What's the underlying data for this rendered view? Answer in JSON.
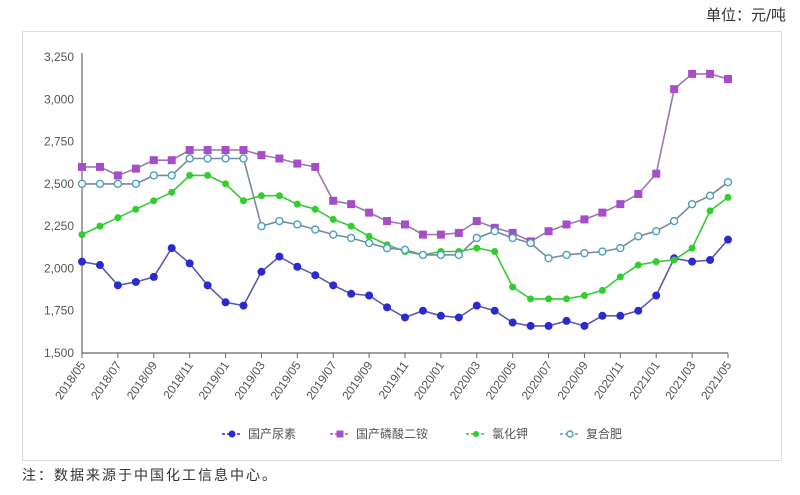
{
  "header": {
    "unit_label": "单位：元/吨"
  },
  "footer": {
    "note": "注：数据来源于中国化工信息中心。"
  },
  "colors": {
    "urea": "#2a2ad0",
    "dap": "#a64dc9",
    "kcl": "#33cc33",
    "compound": "#4a9fbf",
    "axis": "#666666"
  },
  "chart_data": {
    "type": "line",
    "title": "",
    "xlabel": "",
    "ylabel": "元/吨",
    "ylim": [
      1500,
      3250
    ],
    "yticks": [
      1500,
      1750,
      2000,
      2250,
      2500,
      2750,
      3000,
      3250
    ],
    "ytick_labels": [
      "1,500",
      "1,750",
      "2,000",
      "2,250",
      "2,500",
      "2,750",
      "3,000",
      "3,250"
    ],
    "grid": false,
    "legend_position": "bottom",
    "x": [
      "2018/05",
      "2018/06",
      "2018/07",
      "2018/08",
      "2018/09",
      "2018/10",
      "2018/11",
      "2018/12",
      "2019/01",
      "2019/02",
      "2019/03",
      "2019/04",
      "2019/05",
      "2019/06",
      "2019/07",
      "2019/08",
      "2019/09",
      "2019/10",
      "2019/11",
      "2019/12",
      "2020/01",
      "2020/02",
      "2020/03",
      "2020/04",
      "2020/05",
      "2020/06",
      "2020/07",
      "2020/08",
      "2020/09",
      "2020/10",
      "2020/11",
      "2020/12",
      "2021/01",
      "2021/02",
      "2021/03",
      "2021/04",
      "2021/05"
    ],
    "xtick_labels": [
      "2018/05",
      "2018/07",
      "2018/09",
      "2018/11",
      "2019/01",
      "2019/03",
      "2019/05",
      "2019/07",
      "2019/09",
      "2019/11",
      "2020/01",
      "2020/03",
      "2020/05",
      "2020/07",
      "2020/09",
      "2020/11",
      "2021/01",
      "2021/03",
      "2021/05"
    ],
    "series": [
      {
        "name": "国产尿素",
        "marker": "filled-circle",
        "color": "#2a2ad0",
        "values": [
          2040,
          2020,
          1900,
          1920,
          1950,
          2120,
          2030,
          1900,
          1800,
          1780,
          1980,
          2070,
          2010,
          1960,
          1900,
          1850,
          1840,
          1770,
          1710,
          1750,
          1720,
          1710,
          1780,
          1750,
          1680,
          1660,
          1660,
          1690,
          1660,
          1720,
          1720,
          1750,
          1840,
          2060,
          2040,
          2050,
          2170
        ]
      },
      {
        "name": "国产磷酸二铵",
        "marker": "filled-square",
        "color": "#a64dc9",
        "values": [
          2600,
          2600,
          2550,
          2590,
          2640,
          2640,
          2700,
          2700,
          2700,
          2700,
          2670,
          2650,
          2620,
          2600,
          2400,
          2380,
          2330,
          2280,
          2260,
          2200,
          2200,
          2210,
          2280,
          2240,
          2210,
          2160,
          2220,
          2260,
          2290,
          2330,
          2380,
          2440,
          2560,
          3060,
          3150,
          3150,
          3120
        ]
      },
      {
        "name": "氯化钾",
        "marker": "filled-diamond",
        "color": "#33cc33",
        "values": [
          2200,
          2250,
          2300,
          2350,
          2400,
          2450,
          2550,
          2550,
          2500,
          2400,
          2430,
          2430,
          2380,
          2350,
          2290,
          2250,
          2190,
          2140,
          2100,
          2080,
          2100,
          2100,
          2120,
          2100,
          1890,
          1820,
          1820,
          1820,
          1840,
          1870,
          1950,
          2020,
          2040,
          2050,
          2120,
          2340,
          2420
        ]
      },
      {
        "name": "复合肥",
        "marker": "hollow-circle",
        "color": "#4a9fbf",
        "values": [
          2500,
          2500,
          2500,
          2500,
          2550,
          2550,
          2650,
          2650,
          2650,
          2650,
          2250,
          2280,
          2260,
          2230,
          2200,
          2180,
          2150,
          2120,
          2110,
          2080,
          2080,
          2080,
          2180,
          2220,
          2180,
          2150,
          2060,
          2080,
          2090,
          2100,
          2120,
          2190,
          2220,
          2280,
          2380,
          2430,
          2510
        ]
      }
    ]
  }
}
